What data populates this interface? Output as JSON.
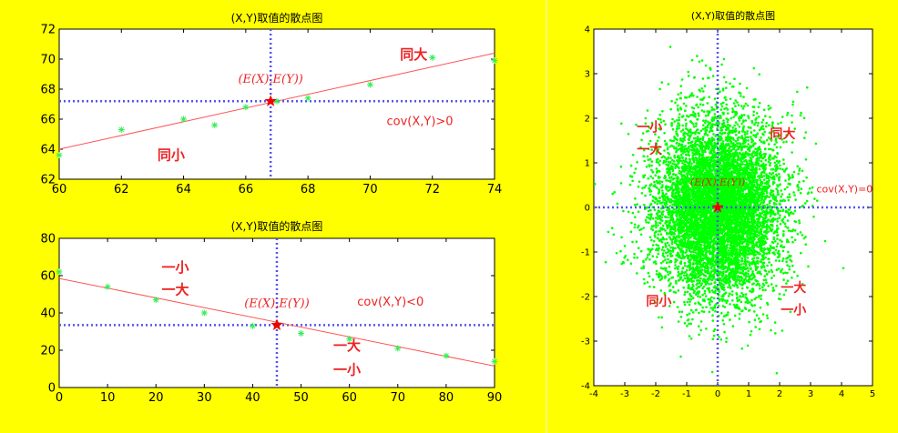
{
  "colors": {
    "background": "#ffff00",
    "plot_bg": "#ffffff",
    "points": "#00ff00",
    "point_stars": "#33ee55",
    "fit_line": "#ff5555",
    "mean_lines": "#5555ee",
    "annotation": "#ee2222",
    "divider": "#f0f0f0"
  },
  "chart_data": [
    {
      "id": "top-left",
      "type": "scatter",
      "title": "(X,Y)取值的散点图",
      "xlim": [
        60,
        74
      ],
      "ylim": [
        62,
        72
      ],
      "xticks": [
        60,
        62,
        64,
        66,
        68,
        70,
        72,
        74
      ],
      "yticks": [
        62,
        64,
        66,
        68,
        70,
        72
      ],
      "marker": "star",
      "points": [
        [
          60,
          63.6
        ],
        [
          62,
          65.3
        ],
        [
          64,
          66.0
        ],
        [
          65,
          65.6
        ],
        [
          66,
          66.8
        ],
        [
          67,
          67.2
        ],
        [
          68,
          67.4
        ],
        [
          70,
          68.3
        ],
        [
          72,
          70.1
        ],
        [
          74,
          69.9
        ]
      ],
      "fit_line": [
        [
          60,
          64.0
        ],
        [
          74,
          70.4
        ]
      ],
      "mean": {
        "x": 66.8,
        "y": 67.2
      },
      "mean_label": "(E(X),E(Y))",
      "annotations": [
        {
          "text": "同大",
          "x": 71.4,
          "y": 70.0
        },
        {
          "text": "同小",
          "x": 63.6,
          "y": 63.3
        },
        {
          "text": "cov(X,Y)>0",
          "x": 71.6,
          "y": 65.6
        }
      ]
    },
    {
      "id": "bottom-left",
      "type": "scatter",
      "title": "(X,Y)取值的散点图",
      "xlim": [
        0,
        90
      ],
      "ylim": [
        0,
        80
      ],
      "xticks": [
        0,
        10,
        20,
        30,
        40,
        50,
        60,
        70,
        80,
        90
      ],
      "yticks": [
        0,
        20,
        40,
        60,
        80
      ],
      "marker": "star",
      "points": [
        [
          0,
          62
        ],
        [
          10,
          54
        ],
        [
          20,
          47
        ],
        [
          30,
          40
        ],
        [
          40,
          33
        ],
        [
          45,
          34
        ],
        [
          50,
          29
        ],
        [
          60,
          26
        ],
        [
          70,
          21
        ],
        [
          80,
          17
        ],
        [
          90,
          14
        ]
      ],
      "fit_line": [
        [
          0,
          58.5
        ],
        [
          90,
          11.5
        ]
      ],
      "mean": {
        "x": 45,
        "y": 33.5
      },
      "mean_label": "(E(X),E(Y))",
      "annotations": [
        {
          "text": "一小",
          "x": 24,
          "y": 62
        },
        {
          "text": "一大",
          "x": 24,
          "y": 50
        },
        {
          "text": "一大",
          "x": 59.5,
          "y": 20
        },
        {
          "text": "一小",
          "x": 59.5,
          "y": 7
        },
        {
          "text": "cov(X,Y)<0",
          "x": 68.5,
          "y": 44
        }
      ]
    },
    {
      "id": "right",
      "type": "scatter",
      "title": "(X,Y)取值的散点图",
      "xlim": [
        -4,
        5
      ],
      "ylim": [
        -4,
        4
      ],
      "xticks": [
        -4,
        -3,
        -2,
        -1,
        0,
        1,
        2,
        3,
        4,
        5
      ],
      "yticks": [
        -4,
        -3,
        -2,
        -1,
        0,
        1,
        2,
        3,
        4
      ],
      "marker": "dot",
      "distribution": {
        "kind": "bivariate-normal",
        "mean": [
          0,
          0
        ],
        "sd": [
          1,
          1
        ],
        "count": 8000
      },
      "mean": {
        "x": 0,
        "y": 0
      },
      "mean_label": "(E(X),E(Y))",
      "annotations": [
        {
          "text": "一小",
          "x": -2.2,
          "y": 1.7
        },
        {
          "text": "一大",
          "x": -2.2,
          "y": 1.2
        },
        {
          "text": "同大",
          "x": 2.1,
          "y": 1.55
        },
        {
          "text": "同小",
          "x": -1.9,
          "y": -2.2
        },
        {
          "text": "一大",
          "x": 2.45,
          "y": -1.9
        },
        {
          "text": "一小",
          "x": 2.45,
          "y": -2.4
        },
        {
          "text": "cov(X,Y)=0",
          "x": 4.1,
          "y": 0.34
        }
      ]
    }
  ]
}
